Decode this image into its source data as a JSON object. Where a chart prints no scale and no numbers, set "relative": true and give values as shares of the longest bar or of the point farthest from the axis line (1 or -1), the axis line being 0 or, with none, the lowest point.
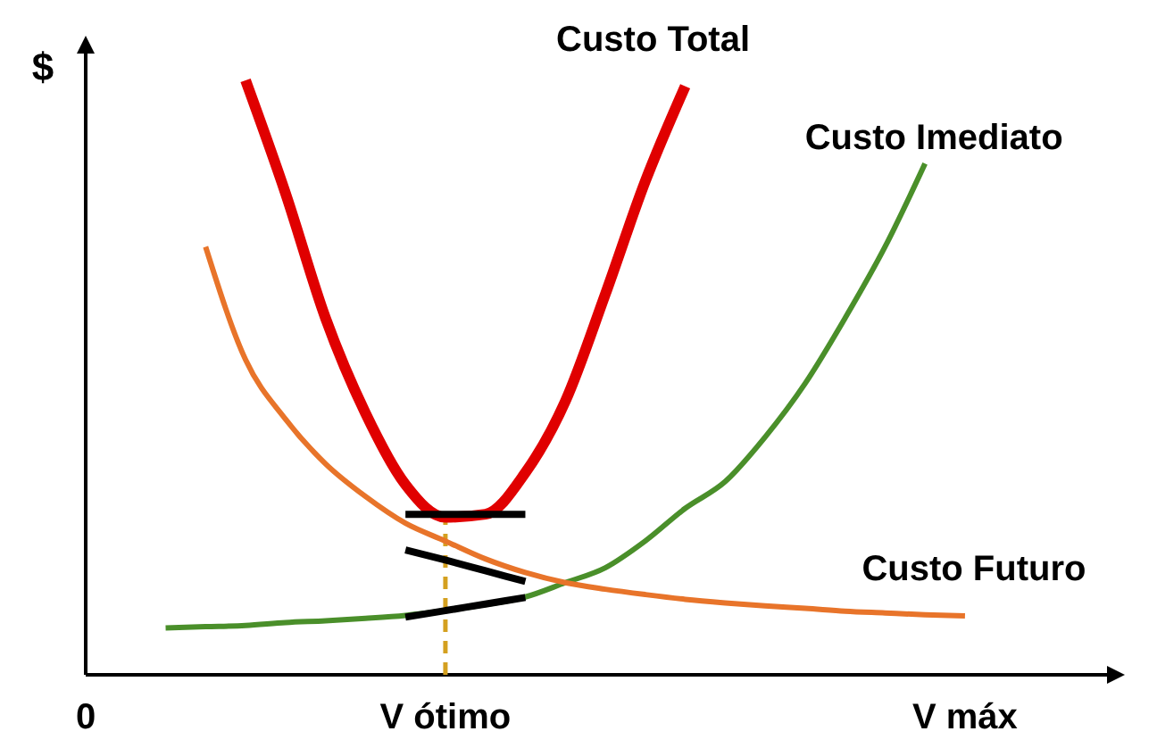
{
  "chart_data": {
    "type": "line",
    "relative": true,
    "ylabel": "$",
    "categories": [
      "0",
      null,
      null,
      null,
      null,
      null,
      null,
      null,
      null,
      "V ótimo",
      null,
      null,
      null,
      null,
      null,
      null,
      null,
      null,
      null,
      null,
      null,
      null,
      "V máx",
      null,
      null,
      null
    ],
    "marker": "none",
    "grid": false,
    "ref_lines": [
      {
        "axis": "x",
        "value": "V ótimo",
        "color": "#d4a020",
        "line_style": "dashed"
      }
    ],
    "series": [
      {
        "name": "Custo Total",
        "color": "#e00000",
        "values": [
          null,
          null,
          null,
          null,
          1.0,
          0.81,
          0.6,
          0.44,
          0.32,
          0.265,
          0.27,
          0.34,
          0.46,
          0.64,
          0.83,
          0.99,
          null,
          null,
          null,
          null,
          null,
          null,
          null,
          null,
          null,
          null
        ]
      },
      {
        "name": "Custo Imediato",
        "color": "#4a8f2a",
        "values": [
          null,
          null,
          0.079,
          0.081,
          0.083,
          0.088,
          0.091,
          0.095,
          0.1,
          0.108,
          0.118,
          0.131,
          0.155,
          0.18,
          0.225,
          0.28,
          0.325,
          0.4,
          0.49,
          0.6,
          0.72,
          0.86,
          null,
          null,
          null,
          null
        ]
      },
      {
        "name": "Custo Futuro",
        "color": "#e8742a",
        "values": [
          null,
          null,
          null,
          0.72,
          0.53,
          0.43,
          0.355,
          0.3,
          0.255,
          0.225,
          0.195,
          0.172,
          0.155,
          0.144,
          0.135,
          0.127,
          0.121,
          0.116,
          0.112,
          0.107,
          0.104,
          0.101,
          0.099,
          null,
          null,
          null
        ]
      },
      {
        "color": "#000000",
        "values": [
          null,
          null,
          null,
          null,
          null,
          null,
          null,
          null,
          0.27,
          0.27,
          0.27,
          0.27,
          null,
          null,
          null,
          null,
          null,
          null,
          null,
          null,
          null,
          null,
          null,
          null,
          null,
          null
        ]
      },
      {
        "color": "#000000",
        "values": [
          null,
          null,
          null,
          null,
          null,
          null,
          null,
          null,
          0.21,
          0.193,
          0.175,
          0.157,
          null,
          null,
          null,
          null,
          null,
          null,
          null,
          null,
          null,
          null,
          null,
          null,
          null,
          null
        ]
      },
      {
        "color": "#000000",
        "values": [
          null,
          null,
          null,
          null,
          null,
          null,
          null,
          null,
          0.097,
          0.108,
          0.119,
          0.13,
          null,
          null,
          null,
          null,
          null,
          null,
          null,
          null,
          null,
          null,
          null,
          null,
          null,
          null
        ]
      }
    ]
  }
}
